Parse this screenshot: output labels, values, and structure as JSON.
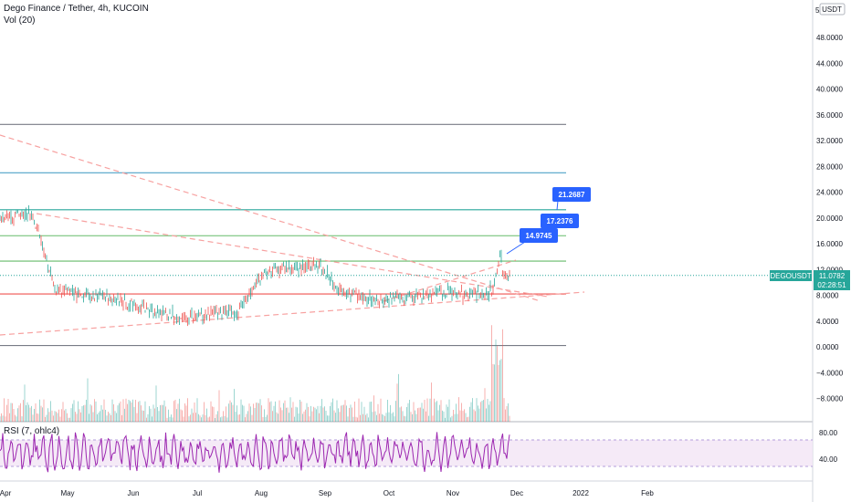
{
  "header": {
    "symbol_title": "Dego Finance / Tether, 4h, KUCOIN",
    "volume_label": "Vol (20)",
    "rsi_label": "RSI (7, ohlc4)"
  },
  "price_axis": {
    "currency": "USDT",
    "ticks": [
      "48.0000",
      "44.0000",
      "40.0000",
      "36.0000",
      "32.0000",
      "28.0000",
      "24.0000",
      "20.0000",
      "16.0000",
      "12.0000",
      "8.0000",
      "4.0000",
      "0.0000",
      "−4.0000",
      "−8.0000"
    ],
    "tick_values": [
      48,
      44,
      40,
      36,
      32,
      28,
      24,
      20,
      16,
      12,
      8,
      4,
      0,
      -4,
      -8
    ],
    "top_partial_tick": "5"
  },
  "rsi_axis": {
    "ticks": [
      "80.00",
      "40.00"
    ],
    "tick_values": [
      80,
      40
    ]
  },
  "time_axis": {
    "labels": [
      "Apr",
      "May",
      "Jun",
      "Jul",
      "Aug",
      "Sep",
      "Oct",
      "Nov",
      "Dec",
      "2022",
      "Feb"
    ]
  },
  "last_price": {
    "symbol": "DEGOUSDT",
    "price": "11.0782",
    "countdown": "02:28:51",
    "value": 11.0782
  },
  "callouts": [
    {
      "text": "21.2687",
      "value": 21.2687
    },
    {
      "text": "17.2376",
      "value": 17.2376
    },
    {
      "text": "14.9745",
      "value": 14.9745
    }
  ],
  "chart_data": {
    "type": "line",
    "title": "Dego Finance / Tether, 4h, KUCOIN",
    "xlabel": "",
    "ylabel": "",
    "ylim": [
      -8,
      48
    ],
    "x": [
      "Apr",
      "May",
      "Jun",
      "Jul",
      "Aug",
      "Sep",
      "Oct",
      "Nov",
      "Dec"
    ],
    "series": [
      {
        "name": "DEGOUSDT",
        "values": [
          20.0,
          8.5,
          7.5,
          5.0,
          11.5,
          12.0,
          7.5,
          8.0,
          11.08
        ]
      }
    ],
    "horizontal_levels": [
      {
        "value": 34.5,
        "color": "#787b86"
      },
      {
        "value": 27.0,
        "color": "#4fa3c7"
      },
      {
        "value": 21.27,
        "color": "#26a69a"
      },
      {
        "value": 17.24,
        "color": "#66bb6a"
      },
      {
        "value": 13.3,
        "color": "#66bb6a"
      },
      {
        "value": 8.2,
        "color": "#ef5350"
      },
      {
        "value": 0.2,
        "color": "#787b86"
      }
    ],
    "rsi": {
      "ylim": [
        0,
        100
      ],
      "band": [
        30,
        70
      ]
    },
    "colors": {
      "up": "#26a69a",
      "down": "#ef5350",
      "rsi": "#9c27b0",
      "band": "#ede7f6",
      "trendline": "#f7a1a0"
    }
  }
}
